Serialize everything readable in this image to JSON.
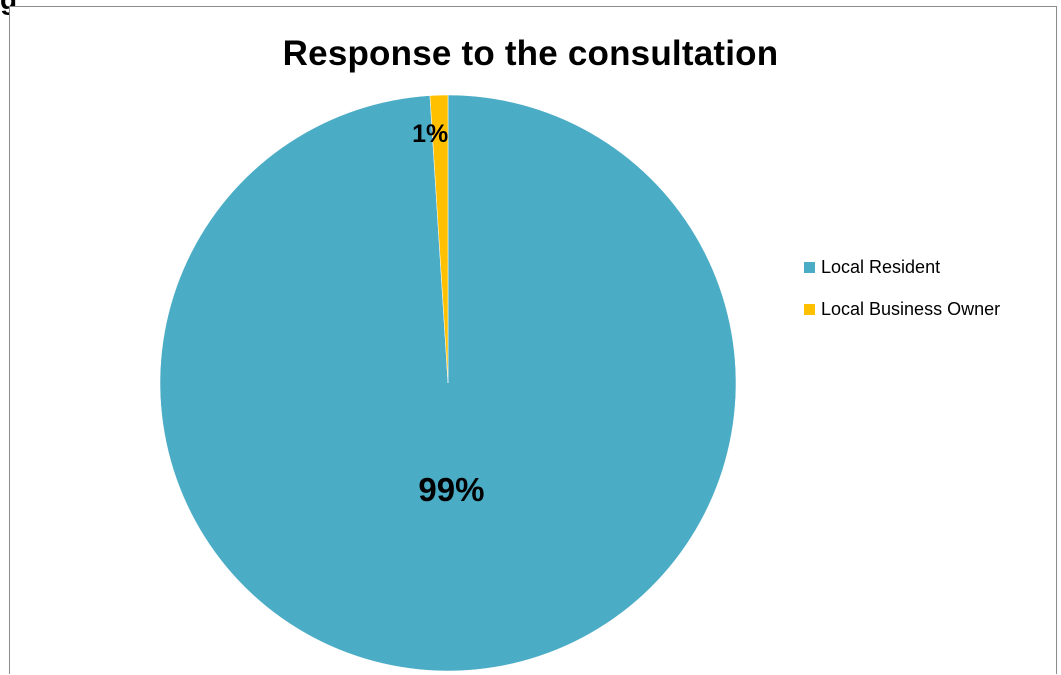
{
  "page": {
    "heading_fragment": "g"
  },
  "chart_data": {
    "type": "pie",
    "title": "Response to the consultation",
    "categories": [
      "Local Resident",
      "Local Business Owner"
    ],
    "values": [
      99,
      1
    ],
    "data_labels": [
      "99%",
      "1%"
    ],
    "colors": [
      "#4bacc6",
      "#ffc000"
    ],
    "legend_position": "right",
    "start_angle": "12 o'clock",
    "direction": "clockwise"
  }
}
